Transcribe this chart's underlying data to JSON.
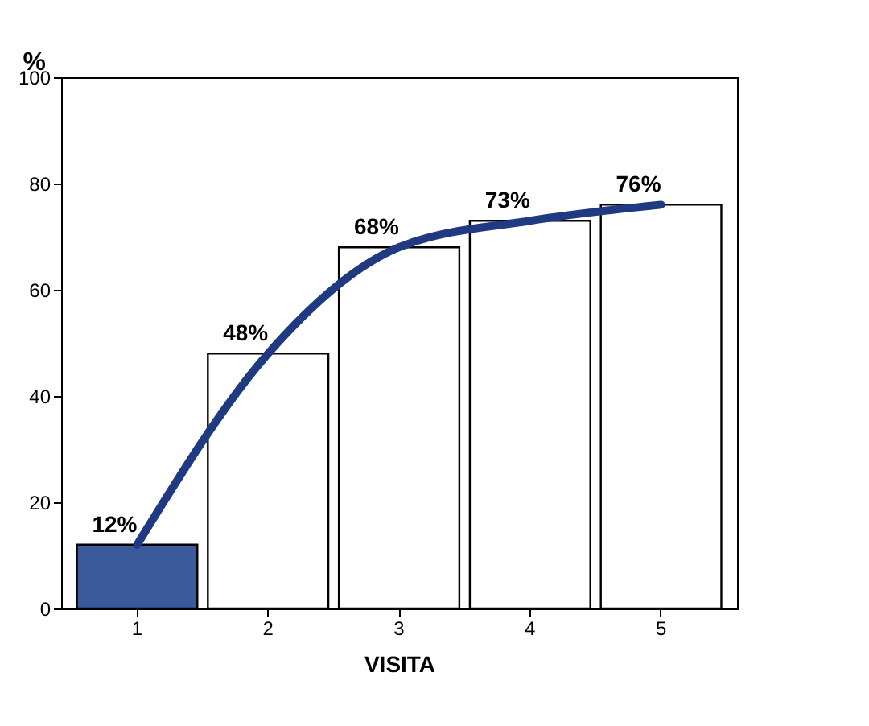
{
  "chart_data": {
    "type": "bar",
    "xlabel": "VISITA",
    "ylabel": "%",
    "categories": [
      "1",
      "2",
      "3",
      "4",
      "5"
    ],
    "series": [
      {
        "colors": [
          "#3b5a9c",
          "#ffffff",
          "#ffffff",
          "#ffffff",
          "#ffffff"
        ],
        "values": [
          12,
          48,
          68,
          73,
          76
        ],
        "value_labels": [
          "12%",
          "48%",
          "68%",
          "73%",
          "76%"
        ]
      },
      {
        "type": "line",
        "color": "#1f3a80",
        "values": [
          12,
          48,
          68,
          73,
          76
        ]
      }
    ],
    "ylim": [
      0,
      100
    ],
    "yticks": [
      0,
      20,
      40,
      60,
      80,
      100
    ],
    "grid": false
  }
}
